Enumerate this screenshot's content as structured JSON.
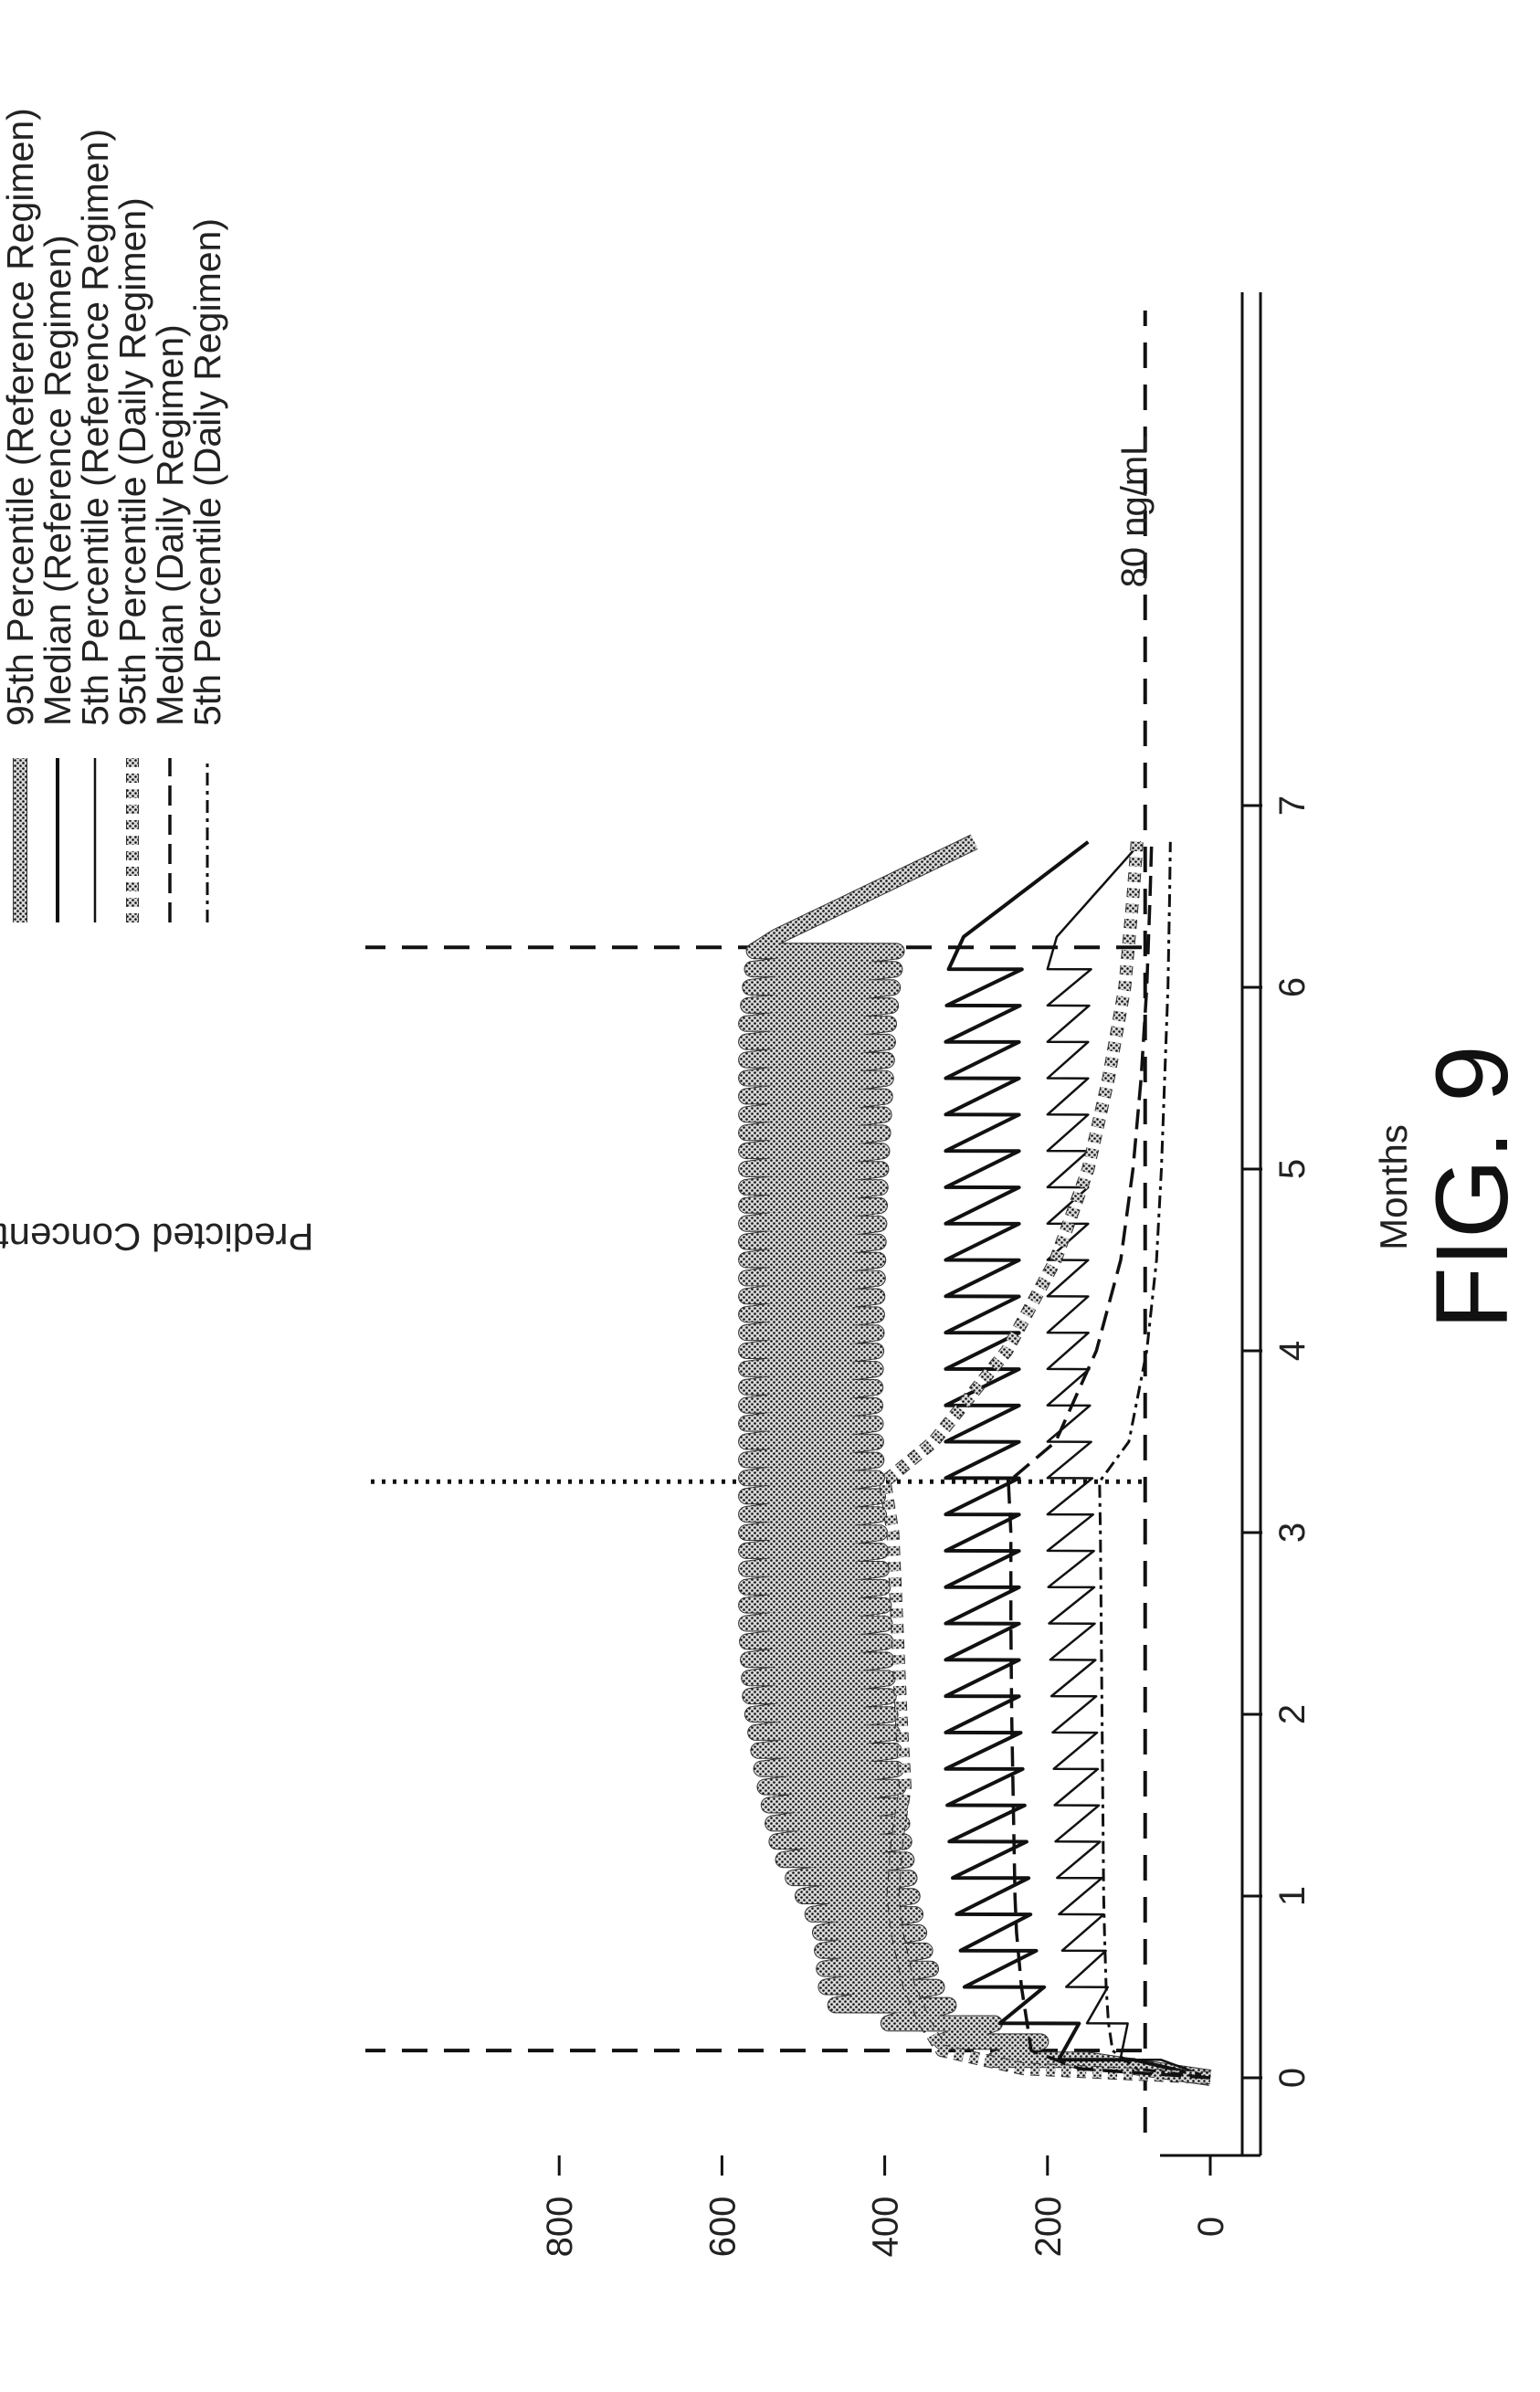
{
  "figure_label": "FIG. 9",
  "chart_data": {
    "type": "line",
    "xlabel": "Months",
    "ylabel": "Predicted Concentration (ng/mL)",
    "xlim": [
      -0.2,
      8.2
    ],
    "ylim": [
      -20,
      830
    ],
    "xticks": [
      0,
      1,
      2,
      3,
      4,
      5,
      6,
      7
    ],
    "yticks": [
      0,
      200,
      400,
      600,
      800
    ],
    "grid": false,
    "legend_position": "top",
    "series": [
      {
        "name": "95th Percentile (Reference Regimen)",
        "style": "heavy-stipple",
        "dose_interval_months": 0.1,
        "trough": [
          95,
          330,
          360,
          375,
          385,
          395,
          400,
          405,
          410,
          412,
          410,
          408,
          405,
          400,
          395,
          385,
          290
        ],
        "peak": [
          200,
          470,
          480,
          530,
          550,
          565,
          570,
          570,
          570,
          570,
          570,
          570,
          570,
          570,
          570,
          560,
          290
        ]
      },
      {
        "name": "Median (Reference Regimen)",
        "style": "solid",
        "dose_interval_months": 0.2,
        "trough": [
          60,
          200,
          220,
          225,
          230,
          235,
          235,
          235,
          235,
          235,
          235,
          235,
          235,
          235,
          235,
          230,
          150
        ],
        "peak": [
          150,
          300,
          310,
          320,
          325,
          325,
          325,
          325,
          325,
          325,
          325,
          325,
          325,
          325,
          325,
          320,
          150
        ]
      },
      {
        "name": "5th Percentile (Reference Regimen)",
        "style": "thin-solid",
        "dose_interval_months": 0.2,
        "trough": [
          40,
          125,
          130,
          135,
          138,
          140,
          142,
          143,
          145,
          148,
          150,
          150,
          150,
          150,
          150,
          145,
          85
        ],
        "peak": [
          90,
          175,
          185,
          190,
          192,
          195,
          198,
          200,
          200,
          200,
          200,
          200,
          200,
          200,
          200,
          200,
          85
        ]
      },
      {
        "name": "95th Percentile (Daily Regimen)",
        "x": [
          0,
          0.05,
          0.15,
          0.3,
          0.5,
          0.8,
          1.0,
          1.3,
          1.6,
          2.0,
          2.5,
          3.0,
          3.28,
          3.5,
          4.0,
          4.5,
          5.0,
          5.5,
          6.0,
          6.5,
          6.8
        ],
        "y": [
          0,
          230,
          330,
          350,
          370,
          385,
          390,
          385,
          375,
          380,
          385,
          390,
          400,
          340,
          250,
          190,
          150,
          125,
          105,
          95,
          90
        ]
      },
      {
        "name": "Median (Daily Regimen)",
        "x": [
          0,
          0.05,
          0.15,
          0.3,
          0.5,
          0.8,
          1.0,
          1.5,
          2.0,
          2.5,
          3.0,
          3.28,
          3.5,
          4.0,
          4.5,
          5.0,
          5.5,
          6.0,
          6.5,
          6.8
        ],
        "y": [
          0,
          160,
          220,
          225,
          232,
          238,
          240,
          242,
          244,
          245,
          245,
          248,
          190,
          140,
          110,
          95,
          85,
          78,
          74,
          72
        ]
      },
      {
        "name": "5th Percentile (Daily Regimen)",
        "x": [
          0,
          0.05,
          0.15,
          0.3,
          0.5,
          0.8,
          1.0,
          1.5,
          2.0,
          2.5,
          3.0,
          3.28,
          3.5,
          4.0,
          4.5,
          5.0,
          5.5,
          6.0,
          6.5,
          6.8
        ],
        "y": [
          0,
          90,
          120,
          125,
          128,
          130,
          131,
          132,
          133,
          134,
          135,
          136,
          100,
          78,
          66,
          60,
          56,
          52,
          50,
          49
        ]
      }
    ],
    "reference_lines": [
      {
        "orientation": "horizontal",
        "y": 80,
        "label": "80 ng/mL",
        "style": "dashed"
      },
      {
        "orientation": "vertical",
        "x": 0.15,
        "style": "dashed"
      },
      {
        "orientation": "vertical",
        "x": 3.28,
        "style": "dotted"
      },
      {
        "orientation": "vertical",
        "x": 6.22,
        "style": "dashed"
      }
    ]
  }
}
